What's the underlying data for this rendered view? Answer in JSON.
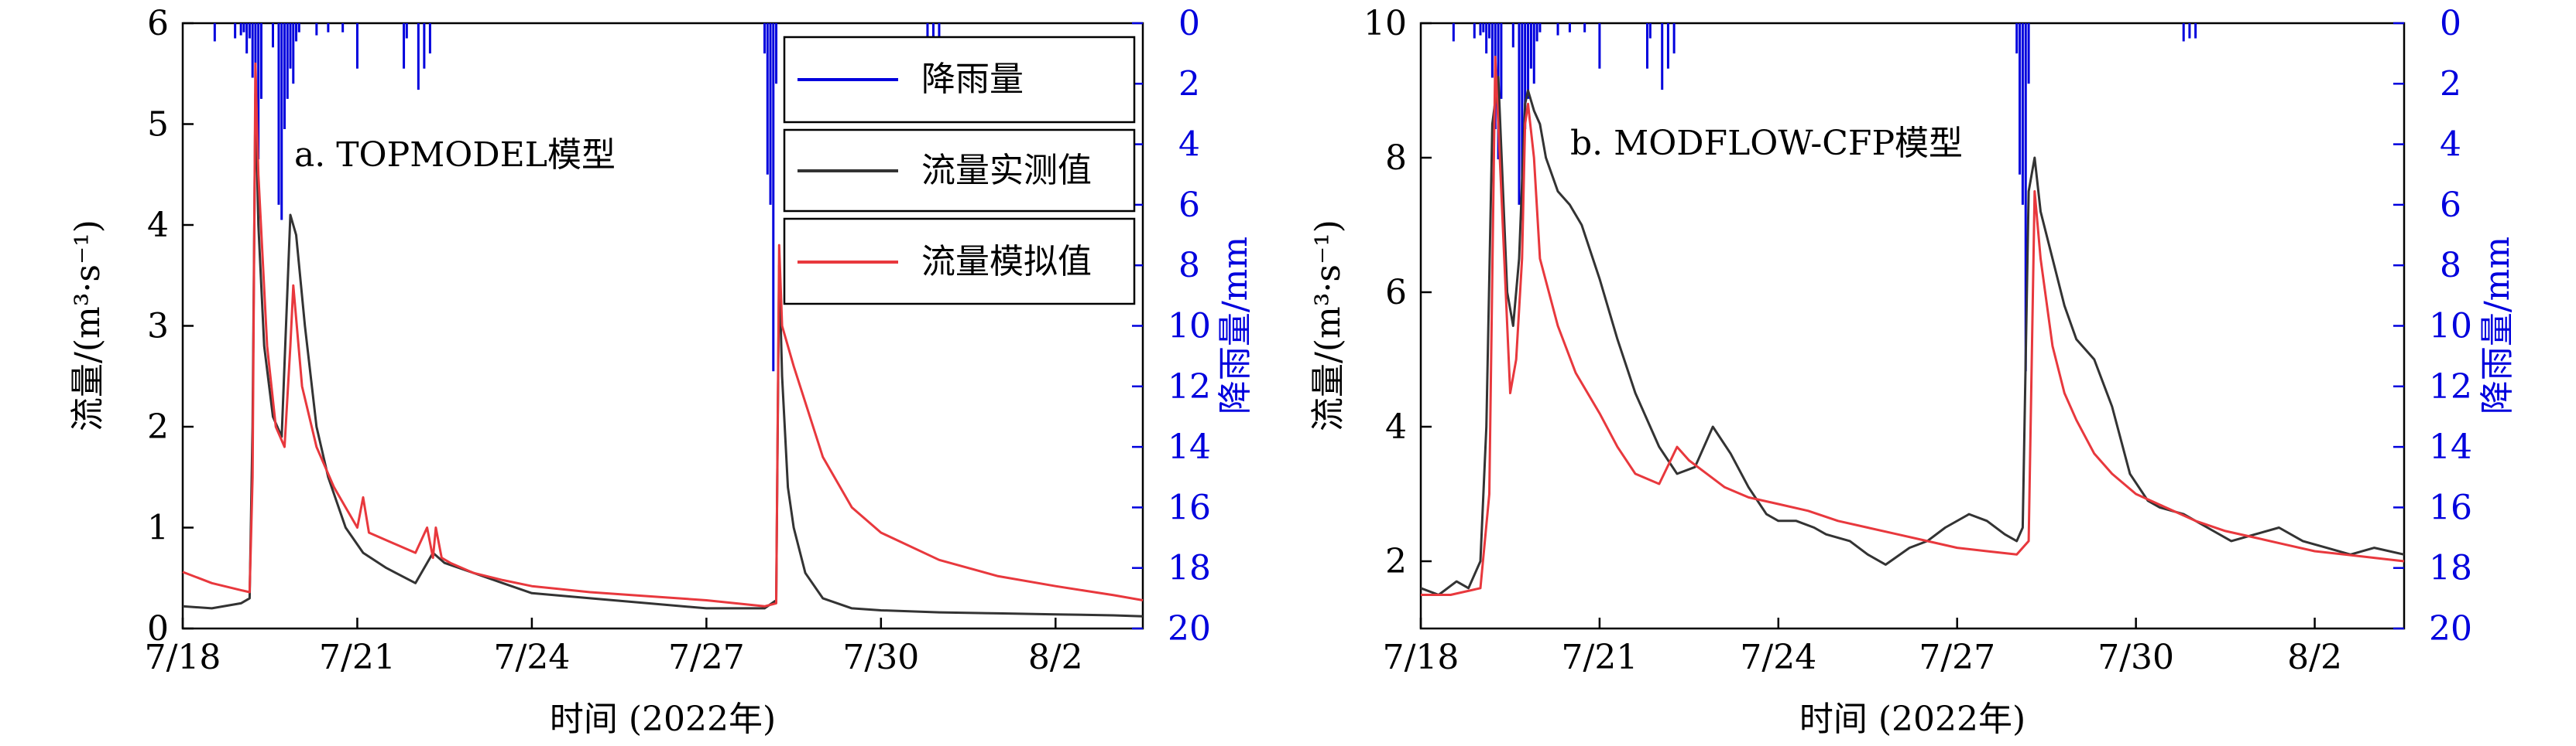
{
  "chart_data": [
    {
      "type": "line",
      "title": "a. TOPMODEL模型",
      "xlabel": "时间 (2022年)",
      "ylabel": "流量/(m³·s⁻¹)",
      "y2label": "降雨量/mm",
      "x_ticks": [
        "7/18",
        "7/21",
        "7/24",
        "7/27",
        "7/30",
        "8/2"
      ],
      "y_ticks": [
        "0",
        "1",
        "2",
        "3",
        "4",
        "5",
        "6"
      ],
      "y2_ticks": [
        "0",
        "2",
        "4",
        "6",
        "8",
        "10",
        "12",
        "14",
        "16",
        "18",
        "20"
      ],
      "xlim_days": [
        0,
        16.5
      ],
      "ylim": [
        0,
        6
      ],
      "y2lim": [
        0,
        20
      ],
      "legend": [
        "降雨量",
        "流量实测值",
        "流量模拟值"
      ],
      "legend_position": "top-right",
      "series": [
        {
          "name": "流量实测值",
          "color": "#333333",
          "x": [
            0,
            0.5,
            1.0,
            1.15,
            1.2,
            1.25,
            1.3,
            1.4,
            1.55,
            1.7,
            1.85,
            1.95,
            2.1,
            2.3,
            2.5,
            2.8,
            3.1,
            3.5,
            4.0,
            4.3,
            4.5,
            5.0,
            5.5,
            6.0,
            7.0,
            8.0,
            9.0,
            10.0,
            10.2,
            10.25,
            10.3,
            10.4,
            10.5,
            10.7,
            11.0,
            11.5,
            12.0,
            13.0,
            14.0,
            15.0,
            16.0,
            16.5
          ],
          "y": [
            0.22,
            0.2,
            0.25,
            0.3,
            2.0,
            5.3,
            4.0,
            2.8,
            2.1,
            1.9,
            4.1,
            3.9,
            3.0,
            2.0,
            1.5,
            1.0,
            0.75,
            0.6,
            0.45,
            0.75,
            0.65,
            0.55,
            0.45,
            0.35,
            0.3,
            0.25,
            0.2,
            0.2,
            0.28,
            3.6,
            2.5,
            1.4,
            1.0,
            0.55,
            0.3,
            0.2,
            0.18,
            0.16,
            0.15,
            0.14,
            0.13,
            0.12
          ]
        },
        {
          "name": "流量模拟值",
          "color": "#e8383d",
          "x": [
            0,
            0.5,
            1.0,
            1.15,
            1.2,
            1.25,
            1.3,
            1.45,
            1.6,
            1.75,
            1.85,
            1.9,
            2.05,
            2.3,
            2.6,
            2.8,
            3.0,
            3.1,
            3.2,
            3.6,
            4.0,
            4.2,
            4.3,
            4.35,
            4.45,
            4.6,
            5.0,
            5.5,
            6.0,
            7.0,
            8.0,
            9.0,
            10.0,
            10.2,
            10.25,
            10.3,
            10.5,
            11.0,
            11.5,
            12.0,
            13.0,
            14.0,
            15.0,
            16.0,
            16.5
          ],
          "y": [
            0.56,
            0.45,
            0.38,
            0.36,
            1.5,
            5.6,
            4.5,
            2.8,
            2.0,
            1.8,
            2.8,
            3.4,
            2.4,
            1.8,
            1.4,
            1.2,
            1.0,
            1.3,
            0.95,
            0.85,
            0.75,
            1.0,
            0.7,
            1.0,
            0.7,
            0.65,
            0.55,
            0.48,
            0.42,
            0.36,
            0.32,
            0.28,
            0.22,
            0.25,
            3.8,
            3.0,
            2.6,
            1.7,
            1.2,
            0.95,
            0.68,
            0.52,
            0.42,
            0.33,
            0.28
          ]
        },
        {
          "name": "降雨量",
          "color": "#0000dd",
          "axis": "right",
          "x": [
            0.55,
            0.9,
            1.0,
            1.05,
            1.1,
            1.15,
            1.2,
            1.25,
            1.3,
            1.35,
            1.55,
            1.65,
            1.7,
            1.75,
            1.8,
            1.85,
            1.9,
            1.95,
            2.0,
            2.3,
            2.5,
            2.75,
            3.0,
            3.8,
            3.85,
            4.05,
            4.15,
            4.25,
            12.9,
            13.0,
            10.0,
            10.05,
            10.1,
            10.15,
            10.2,
            12.8
          ],
          "y": [
            0.6,
            0.5,
            0.4,
            0.3,
            1.0,
            0.5,
            1.8,
            3.5,
            4.5,
            2.5,
            0.8,
            6.0,
            6.5,
            3.5,
            2.5,
            1.5,
            2.0,
            0.6,
            0.3,
            0.4,
            0.3,
            0.3,
            1.5,
            1.5,
            0.5,
            2.2,
            1.5,
            1.0,
            0.5,
            0.5,
            1.0,
            5.0,
            6.0,
            11.5,
            2.0,
            0.6
          ]
        }
      ]
    },
    {
      "type": "line",
      "title": "b. MODFLOW-CFP模型",
      "xlabel": "时间 (2022年)",
      "ylabel": "流量/(m³·s⁻¹)",
      "y2label": "降雨量/mm",
      "x_ticks": [
        "7/18",
        "7/21",
        "7/24",
        "7/27",
        "7/30",
        "8/2"
      ],
      "y_ticks": [
        "2",
        "4",
        "6",
        "8",
        "10"
      ],
      "y2_ticks": [
        "0",
        "2",
        "4",
        "6",
        "8",
        "10",
        "12",
        "14",
        "16",
        "18",
        "20"
      ],
      "xlim_days": [
        0,
        16.5
      ],
      "ylim": [
        1,
        10
      ],
      "y2lim": [
        0,
        20
      ],
      "series": [
        {
          "name": "流量实测值",
          "color": "#333333",
          "x": [
            0,
            0.3,
            0.6,
            0.8,
            1.0,
            1.1,
            1.2,
            1.3,
            1.45,
            1.55,
            1.65,
            1.75,
            1.8,
            1.9,
            2.0,
            2.1,
            2.3,
            2.5,
            2.7,
            3.0,
            3.3,
            3.6,
            4.0,
            4.3,
            4.6,
            4.9,
            5.2,
            5.5,
            5.8,
            6.0,
            6.3,
            6.6,
            6.8,
            7.2,
            7.5,
            7.8,
            8.2,
            8.5,
            8.8,
            9.2,
            9.5,
            9.8,
            10.0,
            10.1,
            10.2,
            10.3,
            10.4,
            10.6,
            10.8,
            11.0,
            11.3,
            11.6,
            11.9,
            12.2,
            12.4,
            12.8,
            13.2,
            13.6,
            14.0,
            14.4,
            14.8,
            15.2,
            15.6,
            16.0,
            16.5
          ],
          "y": [
            1.6,
            1.5,
            1.7,
            1.6,
            2.0,
            4.0,
            8.5,
            9.2,
            6.0,
            5.5,
            6.5,
            8.8,
            9.0,
            8.7,
            8.5,
            8.0,
            7.5,
            7.3,
            7.0,
            6.2,
            5.3,
            4.5,
            3.7,
            3.3,
            3.4,
            4.0,
            3.6,
            3.1,
            2.7,
            2.6,
            2.6,
            2.5,
            2.4,
            2.3,
            2.1,
            1.95,
            2.2,
            2.3,
            2.5,
            2.7,
            2.6,
            2.4,
            2.3,
            2.5,
            7.5,
            8.0,
            7.2,
            6.5,
            5.8,
            5.3,
            5.0,
            4.3,
            3.3,
            2.9,
            2.8,
            2.7,
            2.5,
            2.3,
            2.4,
            2.5,
            2.3,
            2.2,
            2.1,
            2.2,
            2.1
          ]
        },
        {
          "name": "流量模拟值",
          "color": "#e8383d",
          "x": [
            0,
            0.5,
            1.0,
            1.15,
            1.25,
            1.3,
            1.4,
            1.5,
            1.6,
            1.7,
            1.75,
            1.8,
            1.9,
            2.0,
            2.3,
            2.6,
            3.0,
            3.3,
            3.6,
            4.0,
            4.3,
            4.5,
            4.8,
            5.1,
            5.5,
            6.0,
            6.5,
            7.0,
            7.5,
            8.0,
            8.5,
            9.0,
            9.5,
            10.0,
            10.2,
            10.3,
            10.4,
            10.6,
            10.8,
            11.0,
            11.3,
            11.6,
            12.0,
            12.5,
            13.0,
            13.5,
            14.0,
            14.5,
            15.0,
            15.5,
            16.0,
            16.5
          ],
          "y": [
            1.5,
            1.5,
            1.6,
            3.0,
            9.5,
            8.5,
            6.5,
            4.5,
            5.0,
            6.5,
            8.5,
            8.8,
            8.0,
            6.5,
            5.5,
            4.8,
            4.2,
            3.7,
            3.3,
            3.15,
            3.7,
            3.5,
            3.3,
            3.1,
            2.95,
            2.85,
            2.75,
            2.6,
            2.5,
            2.4,
            2.3,
            2.2,
            2.15,
            2.1,
            2.3,
            7.5,
            6.5,
            5.2,
            4.5,
            4.1,
            3.6,
            3.3,
            3.0,
            2.8,
            2.6,
            2.45,
            2.35,
            2.25,
            2.15,
            2.1,
            2.05,
            2.0
          ]
        },
        {
          "name": "降雨量",
          "color": "#0000dd",
          "axis": "right",
          "x": [
            0.55,
            0.9,
            1.0,
            1.05,
            1.1,
            1.15,
            1.2,
            1.25,
            1.3,
            1.35,
            1.55,
            1.65,
            1.7,
            1.75,
            1.8,
            1.85,
            1.9,
            1.95,
            2.0,
            2.3,
            2.5,
            2.75,
            3.0,
            3.8,
            3.85,
            4.05,
            4.15,
            4.25,
            12.9,
            13.0,
            10.0,
            10.05,
            10.1,
            10.15,
            10.2,
            12.8
          ],
          "y": [
            0.6,
            0.5,
            0.4,
            0.3,
            1.0,
            0.5,
            1.8,
            3.5,
            4.5,
            2.5,
            0.8,
            6.0,
            6.5,
            3.5,
            2.5,
            1.5,
            2.0,
            0.6,
            0.3,
            0.4,
            0.3,
            0.3,
            1.5,
            1.5,
            0.5,
            2.2,
            1.5,
            1.0,
            0.5,
            0.5,
            1.0,
            5.0,
            6.0,
            11.5,
            2.0,
            0.6
          ]
        }
      ]
    }
  ]
}
